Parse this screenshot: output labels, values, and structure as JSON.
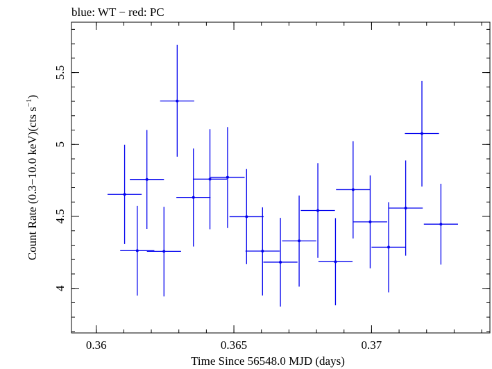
{
  "chart_data": {
    "type": "scatter",
    "title": "blue: WT − red: PC",
    "xlabel": "Time Since 56548.0 MJD (days)",
    "ylabel": "Count Rate (0.3−10.0 keV)(cts s",
    "ylabel_sup": "−1",
    "ylabel_end": ")",
    "xlim": [
      0.3591,
      0.3743
    ],
    "ylim": [
      3.69,
      5.85
    ],
    "x_ticks": [
      {
        "value": 0.36,
        "label": "0.36"
      },
      {
        "value": 0.365,
        "label": "0.365"
      },
      {
        "value": 0.37,
        "label": "0.37"
      }
    ],
    "y_ticks": [
      {
        "value": 4,
        "label": "4"
      },
      {
        "value": 4.5,
        "label": "4.5"
      },
      {
        "value": 5,
        "label": "5"
      },
      {
        "value": 5.5,
        "label": "5.5"
      }
    ],
    "x_minor_step": 0.001,
    "y_minor_step": 0.1,
    "series": [
      {
        "color": "#0000ee",
        "points": [
          {
            "x": 0.36103,
            "y": 4.653,
            "xerr": 0.00062,
            "ylo": 4.308,
            "yhi": 4.998
          },
          {
            "x": 0.36149,
            "y": 4.262,
            "xerr": 0.00062,
            "ylo": 3.949,
            "yhi": 4.573
          },
          {
            "x": 0.36184,
            "y": 4.757,
            "xerr": 0.00062,
            "ylo": 4.413,
            "yhi": 5.101
          },
          {
            "x": 0.36246,
            "y": 4.257,
            "xerr": 0.00062,
            "ylo": 3.944,
            "yhi": 4.567
          },
          {
            "x": 0.36294,
            "y": 5.302,
            "xerr": 0.00062,
            "ylo": 4.915,
            "yhi": 5.692
          },
          {
            "x": 0.36353,
            "y": 4.632,
            "xerr": 0.00062,
            "ylo": 4.29,
            "yhi": 4.972
          },
          {
            "x": 0.36413,
            "y": 4.759,
            "xerr": 0.00062,
            "ylo": 4.411,
            "yhi": 5.106
          },
          {
            "x": 0.36477,
            "y": 4.772,
            "xerr": 0.00062,
            "ylo": 4.419,
            "yhi": 5.121
          },
          {
            "x": 0.36546,
            "y": 4.498,
            "xerr": 0.00062,
            "ylo": 4.168,
            "yhi": 4.829
          },
          {
            "x": 0.36604,
            "y": 4.259,
            "xerr": 0.00062,
            "ylo": 3.95,
            "yhi": 4.563
          },
          {
            "x": 0.36669,
            "y": 4.182,
            "xerr": 0.00062,
            "ylo": 3.873,
            "yhi": 4.49
          },
          {
            "x": 0.36737,
            "y": 4.33,
            "xerr": 0.00062,
            "ylo": 4.012,
            "yhi": 4.645
          },
          {
            "x": 0.36805,
            "y": 4.541,
            "xerr": 0.00062,
            "ylo": 4.212,
            "yhi": 4.87
          },
          {
            "x": 0.36869,
            "y": 4.185,
            "xerr": 0.00062,
            "ylo": 3.882,
            "yhi": 4.488
          },
          {
            "x": 0.36933,
            "y": 4.686,
            "xerr": 0.00062,
            "ylo": 4.347,
            "yhi": 5.023
          },
          {
            "x": 0.36995,
            "y": 4.462,
            "xerr": 0.00062,
            "ylo": 4.139,
            "yhi": 4.785
          },
          {
            "x": 0.37062,
            "y": 4.286,
            "xerr": 0.00062,
            "ylo": 3.972,
            "yhi": 4.599
          },
          {
            "x": 0.37124,
            "y": 4.558,
            "xerr": 0.00062,
            "ylo": 4.227,
            "yhi": 4.889
          },
          {
            "x": 0.37183,
            "y": 5.076,
            "xerr": 0.00062,
            "ylo": 4.708,
            "yhi": 5.441
          },
          {
            "x": 0.37252,
            "y": 4.446,
            "xerr": 0.00062,
            "ylo": 4.165,
            "yhi": 4.727
          }
        ]
      }
    ]
  }
}
